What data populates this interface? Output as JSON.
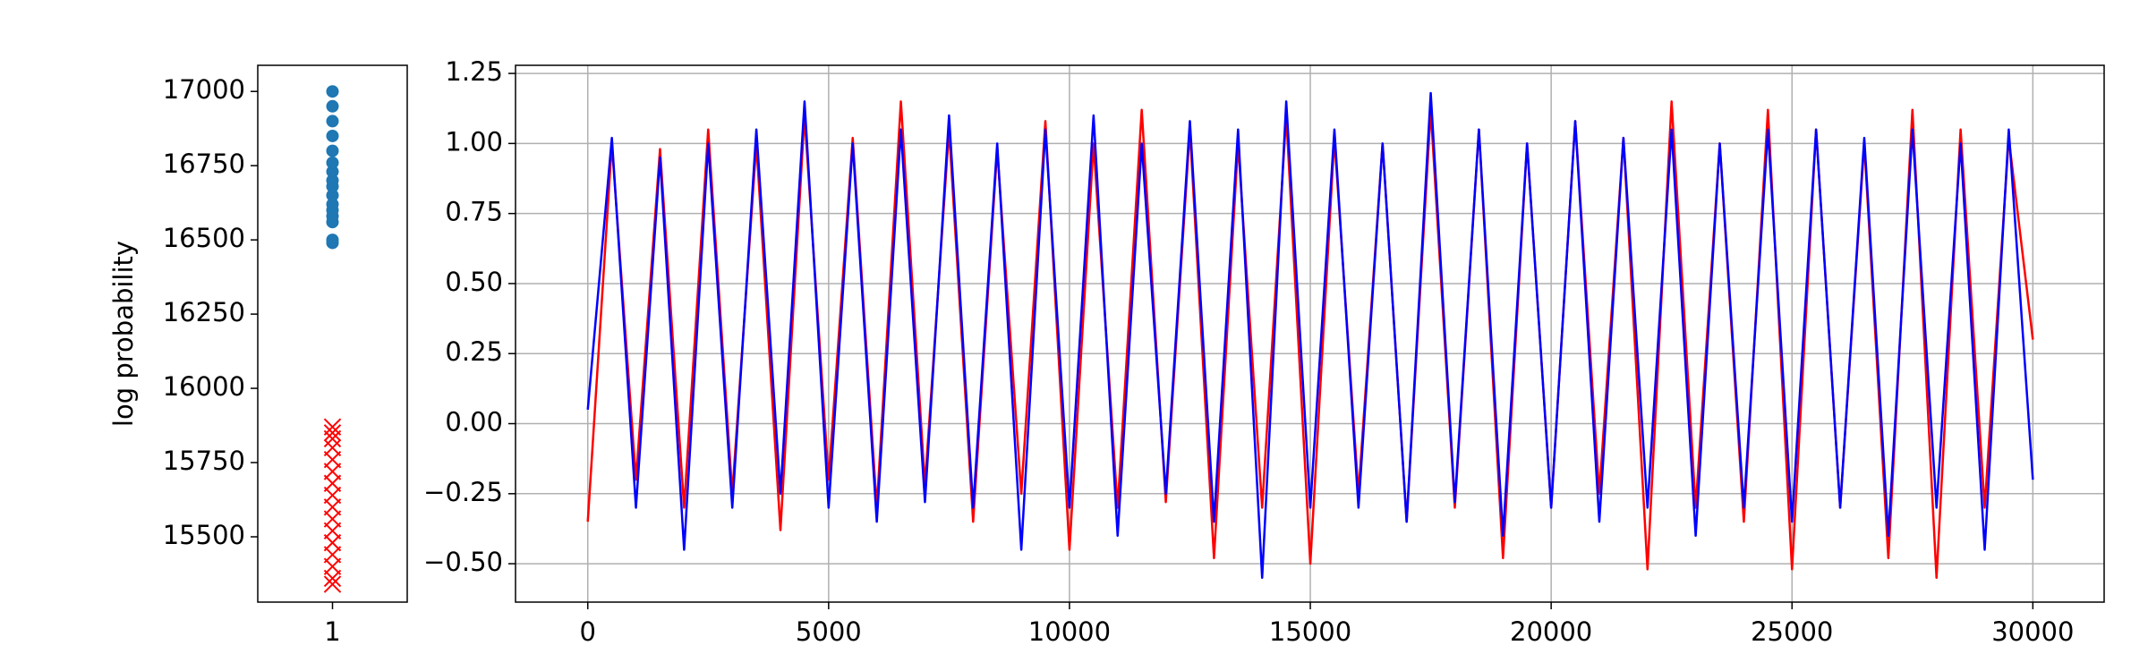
{
  "chart_data": [
    {
      "type": "scatter",
      "ylabel": "log probability",
      "xlim": [
        0.55,
        1.45
      ],
      "xticks": [
        1
      ],
      "ylim": [
        15280,
        17088
      ],
      "yticks": [
        15500,
        15750,
        16000,
        16250,
        16500,
        16750,
        17000
      ],
      "series": [
        {
          "color": "#1f77b4",
          "marker": "circle",
          "x": [
            1,
            1,
            1,
            1,
            1,
            1,
            1,
            1,
            1,
            1,
            1,
            1,
            1,
            1,
            1,
            1
          ],
          "values": [
            16490,
            16500,
            16560,
            16580,
            16600,
            16620,
            16650,
            16680,
            16700,
            16730,
            16760,
            16800,
            16850,
            16900,
            16950,
            17000
          ]
        },
        {
          "color": "#ff0000",
          "marker": "x",
          "x": [
            1,
            1,
            1,
            1,
            1,
            1,
            1,
            1,
            1,
            1,
            1,
            1,
            1,
            1,
            1,
            1
          ],
          "values": [
            15340,
            15360,
            15400,
            15440,
            15480,
            15520,
            15560,
            15600,
            15640,
            15680,
            15720,
            15760,
            15800,
            15830,
            15850,
            15870
          ]
        }
      ]
    },
    {
      "type": "line",
      "grid": true,
      "xlim": [
        -1500,
        31480
      ],
      "xticks": [
        0,
        5000,
        10000,
        15000,
        20000,
        25000,
        30000
      ],
      "ylim": [
        -0.637,
        1.279
      ],
      "yticks": [
        {
          "value": -0.5,
          "label": "−0.50"
        },
        {
          "value": -0.25,
          "label": "−0.25"
        },
        {
          "value": 0,
          "label": "0.00"
        },
        0.25,
        {
          "value": 0.5,
          "label": "0.50"
        },
        0.75,
        {
          "value": 1,
          "label": "1.00"
        },
        1.25
      ],
      "x": [
        0,
        500,
        1000,
        1500,
        2000,
        2500,
        3000,
        3500,
        4000,
        4500,
        5000,
        5500,
        6000,
        6500,
        7000,
        7500,
        8000,
        8500,
        9000,
        9500,
        10000,
        10500,
        11000,
        11500,
        12000,
        12500,
        13000,
        13500,
        14000,
        14500,
        15000,
        15500,
        16000,
        16500,
        17000,
        17500,
        18000,
        18500,
        19000,
        19500,
        20000,
        20500,
        21000,
        21500,
        22000,
        22500,
        23000,
        23500,
        24000,
        24500,
        25000,
        25500,
        26000,
        26500,
        27000,
        27500,
        28000,
        28500,
        29000,
        29500,
        30000
      ],
      "series": [
        {
          "color": "#ff0000",
          "values": [
            -0.35,
            1.0,
            -0.2,
            0.98,
            -0.3,
            1.05,
            -0.25,
            1.0,
            -0.38,
            1.1,
            -0.2,
            1.02,
            -0.3,
            1.15,
            -0.22,
            1.05,
            -0.35,
            0.98,
            -0.25,
            1.08,
            -0.45,
            1.0,
            -0.3,
            1.12,
            -0.28,
            1.05,
            -0.48,
            1.0,
            -0.3,
            1.1,
            -0.5,
            1.02,
            -0.25,
            1.0,
            -0.35,
            1.12,
            -0.3,
            1.05,
            -0.48,
            1.0,
            -0.3,
            1.08,
            -0.25,
            1.02,
            -0.52,
            1.15,
            -0.3,
            1.0,
            -0.35,
            1.12,
            -0.52,
            1.05,
            -0.3,
            1.0,
            -0.48,
            1.12,
            -0.55,
            1.05,
            -0.3,
            1.02,
            0.3
          ]
        },
        {
          "color": "#0000ff",
          "values": [
            0.05,
            1.02,
            -0.3,
            0.95,
            -0.45,
            1.0,
            -0.3,
            1.05,
            -0.25,
            1.15,
            -0.3,
            1.0,
            -0.35,
            1.05,
            -0.28,
            1.1,
            -0.3,
            1.0,
            -0.45,
            1.05,
            -0.3,
            1.1,
            -0.4,
            1.0,
            -0.25,
            1.08,
            -0.35,
            1.05,
            -0.55,
            1.15,
            -0.3,
            1.05,
            -0.3,
            1.0,
            -0.35,
            1.18,
            -0.28,
            1.05,
            -0.4,
            1.0,
            -0.3,
            1.08,
            -0.35,
            1.02,
            -0.3,
            1.05,
            -0.4,
            1.0,
            -0.3,
            1.05,
            -0.35,
            1.05,
            -0.3,
            1.02,
            -0.4,
            1.05,
            -0.3,
            1.0,
            -0.45,
            1.05,
            -0.2
          ]
        }
      ]
    }
  ]
}
